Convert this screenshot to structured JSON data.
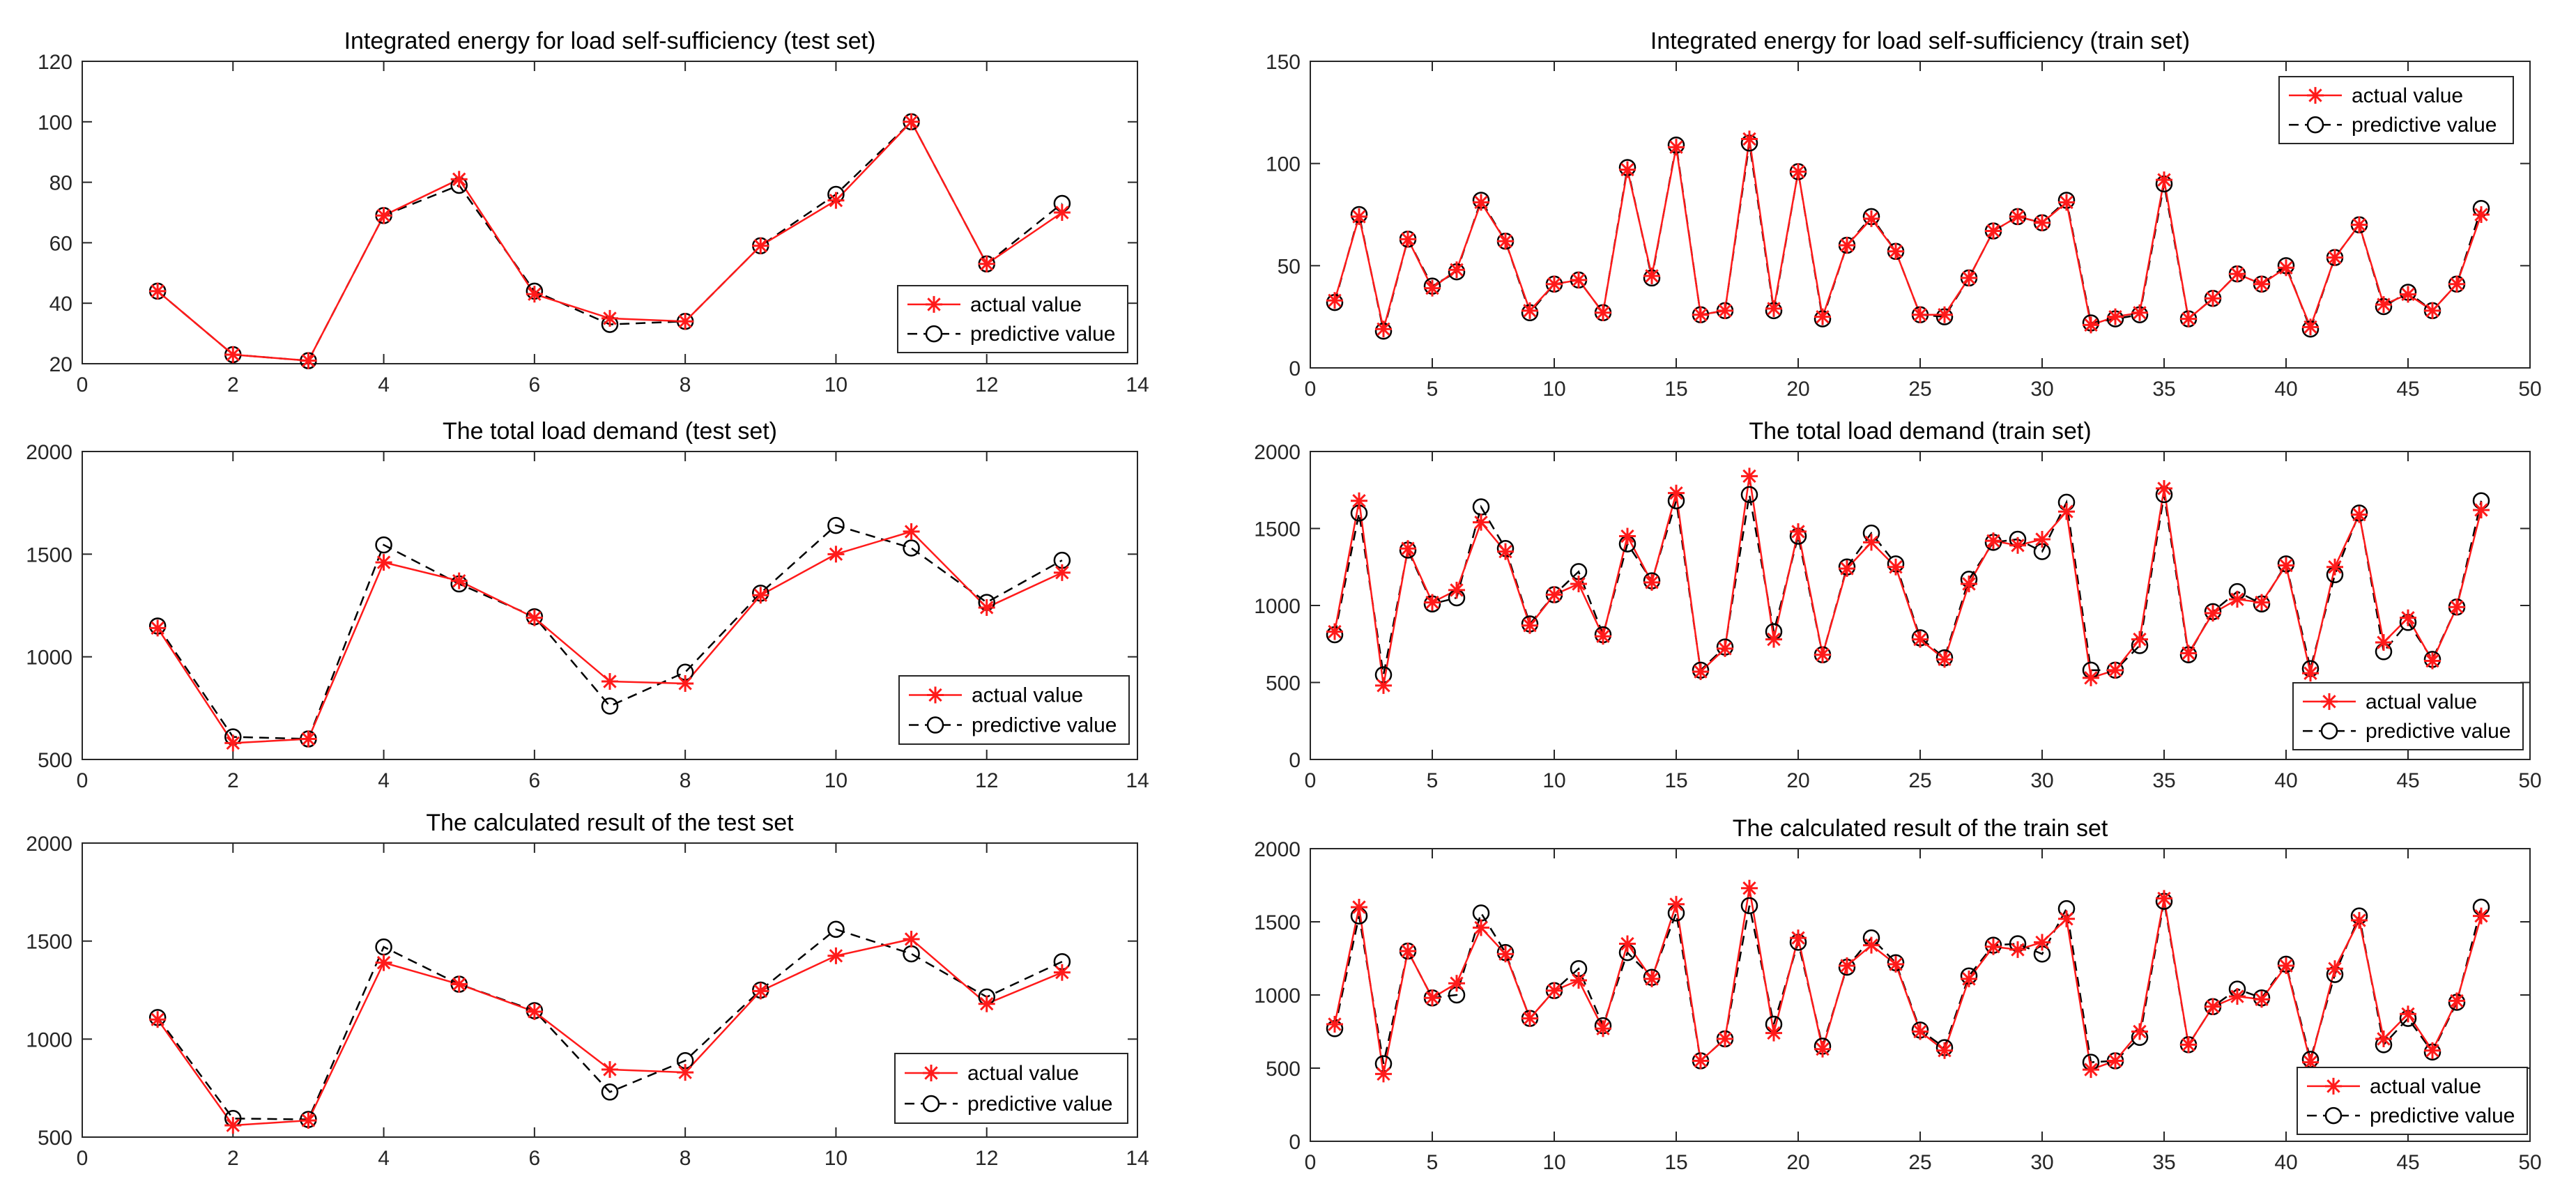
{
  "chart_data": [
    {
      "type": "line",
      "title": "Integrated energy for load self-sufficiency (test set)",
      "xlabel": "",
      "ylabel": "",
      "xlim": [
        0,
        14
      ],
      "ylim": [
        20,
        120
      ],
      "xticks": [
        0,
        2,
        4,
        6,
        8,
        10,
        12,
        14
      ],
      "yticks": [
        20,
        40,
        60,
        80,
        100,
        120
      ],
      "legend_position": "bottom-right",
      "x": [
        1,
        2,
        3,
        4,
        5,
        6,
        7,
        8,
        9,
        10,
        11,
        12,
        13
      ],
      "series": [
        {
          "name": "actual value",
          "values": [
            44,
            23,
            21,
            69,
            81,
            43,
            35,
            34,
            59,
            74,
            100,
            53,
            70
          ]
        },
        {
          "name": "predictive value",
          "values": [
            44,
            23,
            21,
            69,
            79,
            44,
            33,
            34,
            59,
            76,
            100,
            53,
            73
          ]
        }
      ]
    },
    {
      "type": "line",
      "title": "Integrated energy for load self-sufficiency (train set)",
      "xlabel": "",
      "ylabel": "",
      "xlim": [
        0,
        50
      ],
      "ylim": [
        0,
        150
      ],
      "xticks": [
        0,
        5,
        10,
        15,
        20,
        25,
        30,
        35,
        40,
        45,
        50
      ],
      "yticks": [
        0,
        50,
        100,
        150
      ],
      "legend_position": "top-right",
      "x": [
        1,
        2,
        3,
        4,
        5,
        6,
        7,
        8,
        9,
        10,
        11,
        12,
        13,
        14,
        15,
        16,
        17,
        18,
        19,
        20,
        21,
        22,
        23,
        24,
        25,
        26,
        27,
        28,
        29,
        30,
        31,
        32,
        33,
        34,
        35,
        36,
        37,
        38,
        39,
        40,
        41,
        42,
        43,
        44,
        45,
        46,
        47,
        48
      ],
      "series": [
        {
          "name": "actual value",
          "values": [
            33,
            74,
            19,
            63,
            39,
            48,
            81,
            62,
            28,
            41,
            43,
            27,
            97,
            45,
            108,
            26,
            28,
            112,
            29,
            96,
            25,
            60,
            73,
            57,
            26,
            26,
            44,
            67,
            74,
            71,
            81,
            21,
            25,
            27,
            92,
            24,
            34,
            46,
            41,
            49,
            20,
            54,
            70,
            31,
            36,
            28,
            41,
            75
          ]
        },
        {
          "name": "predictive value",
          "values": [
            32,
            75,
            18,
            63,
            40,
            47,
            82,
            62,
            27,
            41,
            43,
            27,
            98,
            44,
            109,
            26,
            28,
            110,
            28,
            96,
            24,
            60,
            74,
            57,
            26,
            25,
            44,
            67,
            74,
            71,
            82,
            22,
            24,
            26,
            90,
            24,
            34,
            46,
            41,
            50,
            19,
            54,
            70,
            30,
            37,
            28,
            41,
            78
          ]
        }
      ]
    },
    {
      "type": "line",
      "title": "The total load demand (test set)",
      "xlabel": "",
      "ylabel": "",
      "xlim": [
        0,
        14
      ],
      "ylim": [
        500,
        2000
      ],
      "xticks": [
        0,
        2,
        4,
        6,
        8,
        10,
        12,
        14
      ],
      "yticks": [
        500,
        1000,
        1500,
        2000
      ],
      "legend_position": "bottom-right",
      "x": [
        1,
        2,
        3,
        4,
        5,
        6,
        7,
        8,
        9,
        10,
        11,
        12,
        13
      ],
      "series": [
        {
          "name": "actual value",
          "values": [
            1140,
            580,
            600,
            1460,
            1370,
            1190,
            880,
            870,
            1300,
            1500,
            1610,
            1240,
            1410
          ]
        },
        {
          "name": "predictive value",
          "values": [
            1150,
            610,
            600,
            1545,
            1355,
            1195,
            760,
            925,
            1310,
            1640,
            1530,
            1265,
            1470
          ]
        }
      ]
    },
    {
      "type": "line",
      "title": "The total load demand (train set)",
      "xlabel": "",
      "ylabel": "",
      "xlim": [
        0,
        50
      ],
      "ylim": [
        0,
        2000
      ],
      "xticks": [
        0,
        5,
        10,
        15,
        20,
        25,
        30,
        35,
        40,
        45,
        50
      ],
      "yticks": [
        0,
        500,
        1000,
        1500,
        2000
      ],
      "legend_position": "bottom-right",
      "x": [
        1,
        2,
        3,
        4,
        5,
        6,
        7,
        8,
        9,
        10,
        11,
        12,
        13,
        14,
        15,
        16,
        17,
        18,
        19,
        20,
        21,
        22,
        23,
        24,
        25,
        26,
        27,
        28,
        29,
        30,
        31,
        32,
        33,
        34,
        35,
        36,
        37,
        38,
        39,
        40,
        41,
        42,
        43,
        44,
        45,
        46,
        47,
        48
      ],
      "series": [
        {
          "name": "actual value",
          "values": [
            830,
            1680,
            480,
            1370,
            1020,
            1100,
            1540,
            1350,
            870,
            1070,
            1140,
            800,
            1450,
            1150,
            1730,
            570,
            720,
            1840,
            780,
            1480,
            680,
            1240,
            1410,
            1250,
            780,
            650,
            1140,
            1420,
            1390,
            1430,
            1610,
            530,
            580,
            780,
            1760,
            690,
            950,
            1040,
            1020,
            1260,
            560,
            1250,
            1590,
            760,
            920,
            640,
            990,
            1620
          ]
        },
        {
          "name": "predictive value",
          "values": [
            810,
            1600,
            550,
            1360,
            1010,
            1050,
            1640,
            1370,
            880,
            1070,
            1220,
            810,
            1400,
            1160,
            1680,
            580,
            730,
            1720,
            830,
            1450,
            680,
            1250,
            1470,
            1270,
            790,
            660,
            1170,
            1410,
            1430,
            1350,
            1670,
            580,
            580,
            740,
            1720,
            680,
            960,
            1090,
            1010,
            1270,
            590,
            1200,
            1600,
            700,
            890,
            650,
            990,
            1680
          ]
        }
      ]
    },
    {
      "type": "line",
      "title": "The calculated result of the test set",
      "xlabel": "",
      "ylabel": "",
      "xlim": [
        0,
        14
      ],
      "ylim": [
        500,
        2000
      ],
      "xticks": [
        0,
        2,
        4,
        6,
        8,
        10,
        12,
        14
      ],
      "yticks": [
        500,
        1000,
        1500,
        2000
      ],
      "legend_position": "bottom-right",
      "x": [
        1,
        2,
        3,
        4,
        5,
        6,
        7,
        8,
        9,
        10,
        11,
        12,
        13
      ],
      "series": [
        {
          "name": "actual value",
          "values": [
            1100,
            560,
            585,
            1390,
            1280,
            1140,
            845,
            830,
            1245,
            1425,
            1510,
            1180,
            1340
          ]
        },
        {
          "name": "predictive value",
          "values": [
            1110,
            595,
            590,
            1470,
            1280,
            1145,
            730,
            890,
            1250,
            1560,
            1435,
            1215,
            1395
          ]
        }
      ]
    },
    {
      "type": "line",
      "title": "The calculated result of the train set",
      "xlabel": "",
      "ylabel": "",
      "xlim": [
        0,
        50
      ],
      "ylim": [
        0,
        2000
      ],
      "xticks": [
        0,
        5,
        10,
        15,
        20,
        25,
        30,
        35,
        40,
        45,
        50
      ],
      "yticks": [
        0,
        500,
        1000,
        1500,
        2000
      ],
      "legend_position": "bottom-right",
      "x": [
        1,
        2,
        3,
        4,
        5,
        6,
        7,
        8,
        9,
        10,
        11,
        12,
        13,
        14,
        15,
        16,
        17,
        18,
        19,
        20,
        21,
        22,
        23,
        24,
        25,
        26,
        27,
        28,
        29,
        30,
        31,
        32,
        33,
        34,
        35,
        36,
        37,
        38,
        39,
        40,
        41,
        42,
        43,
        44,
        45,
        46,
        47,
        48
      ],
      "series": [
        {
          "name": "actual value",
          "values": [
            800,
            1600,
            460,
            1300,
            980,
            1080,
            1460,
            1280,
            840,
            1030,
            1100,
            770,
            1350,
            1110,
            1620,
            550,
            700,
            1730,
            740,
            1390,
            630,
            1200,
            1340,
            1210,
            750,
            620,
            1110,
            1330,
            1310,
            1360,
            1520,
            490,
            550,
            750,
            1660,
            660,
            920,
            990,
            970,
            1200,
            540,
            1180,
            1510,
            700,
            870,
            620,
            960,
            1540
          ]
        },
        {
          "name": "predictive value",
          "values": [
            770,
            1540,
            530,
            1300,
            980,
            1000,
            1560,
            1290,
            840,
            1030,
            1180,
            790,
            1290,
            1120,
            1560,
            550,
            700,
            1610,
            800,
            1360,
            650,
            1190,
            1390,
            1220,
            760,
            640,
            1130,
            1340,
            1350,
            1280,
            1590,
            540,
            550,
            710,
            1640,
            660,
            920,
            1040,
            980,
            1210,
            560,
            1140,
            1540,
            660,
            840,
            610,
            950,
            1600
          ]
        }
      ]
    }
  ],
  "colors": {
    "actual": "#ff1a1a",
    "predictive": "#000000",
    "axis": "#262626"
  }
}
